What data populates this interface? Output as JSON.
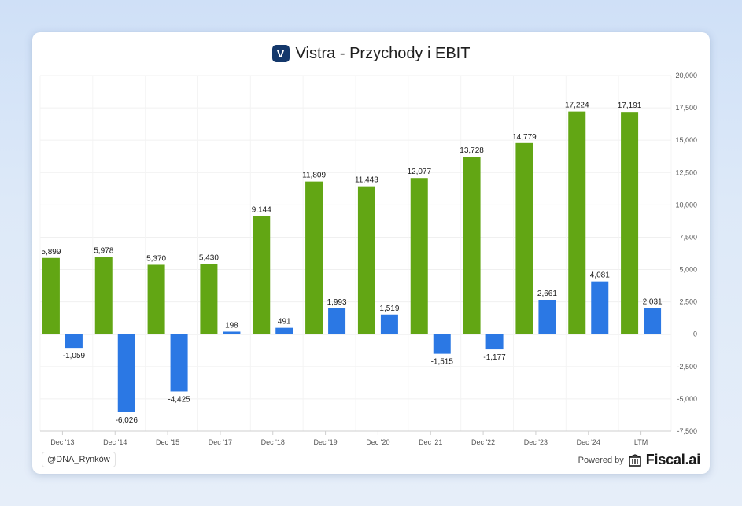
{
  "header": {
    "logo_letter": "V",
    "title": "Vistra - Przychody i EBIT"
  },
  "footer": {
    "watermark": "@DNA_Rynków",
    "powered_by": "Powered by",
    "brand": "Fiscal.ai"
  },
  "colors": {
    "revenue": "#62a614",
    "ebit": "#2b78e4",
    "logo_bg": "#14386b"
  },
  "chart_data": {
    "type": "bar",
    "title": "Vistra - Przychody i EBIT",
    "categories": [
      "Dec '13",
      "Dec '14",
      "Dec '15",
      "Dec '17",
      "Dec '18",
      "Dec '19",
      "Dec '20",
      "Dec '21",
      "Dec '22",
      "Dec '23",
      "Dec '24",
      "LTM"
    ],
    "series": [
      {
        "color": "#62a614",
        "values": [
          5899,
          5978,
          5370,
          5430,
          9144,
          11809,
          11443,
          12077,
          13728,
          14779,
          17224,
          17191
        ],
        "labels": [
          "5,899",
          "5,978",
          "5,370",
          "5,430",
          "9,144",
          "11,809",
          "11,443",
          "12,077",
          "13,728",
          "14,779",
          "17,224",
          "17,191"
        ]
      },
      {
        "color": "#2b78e4",
        "values": [
          -1059,
          -6026,
          -4425,
          198,
          491,
          1993,
          1519,
          -1515,
          -1177,
          2661,
          4081,
          2031
        ],
        "labels": [
          "-1,059",
          "-6,026",
          "-4,425",
          "198",
          "491",
          "1,993",
          "1,519",
          "-1,515",
          "-1,177",
          "2,661",
          "4,081",
          "2,031"
        ]
      }
    ],
    "ylim": [
      -7500,
      20000
    ],
    "y_ticks": [
      20000,
      17500,
      15000,
      12500,
      10000,
      7500,
      5000,
      2500,
      0,
      -2500,
      -5000,
      -7500
    ],
    "y_tick_labels": [
      "20,000",
      "17,500",
      "15,000",
      "12,500",
      "10,000",
      "7,500",
      "5,000",
      "2,500",
      "0",
      "-2,500",
      "-5,000",
      "-7,500"
    ],
    "y_axis_position": "right",
    "grid": true,
    "legend": "none"
  }
}
